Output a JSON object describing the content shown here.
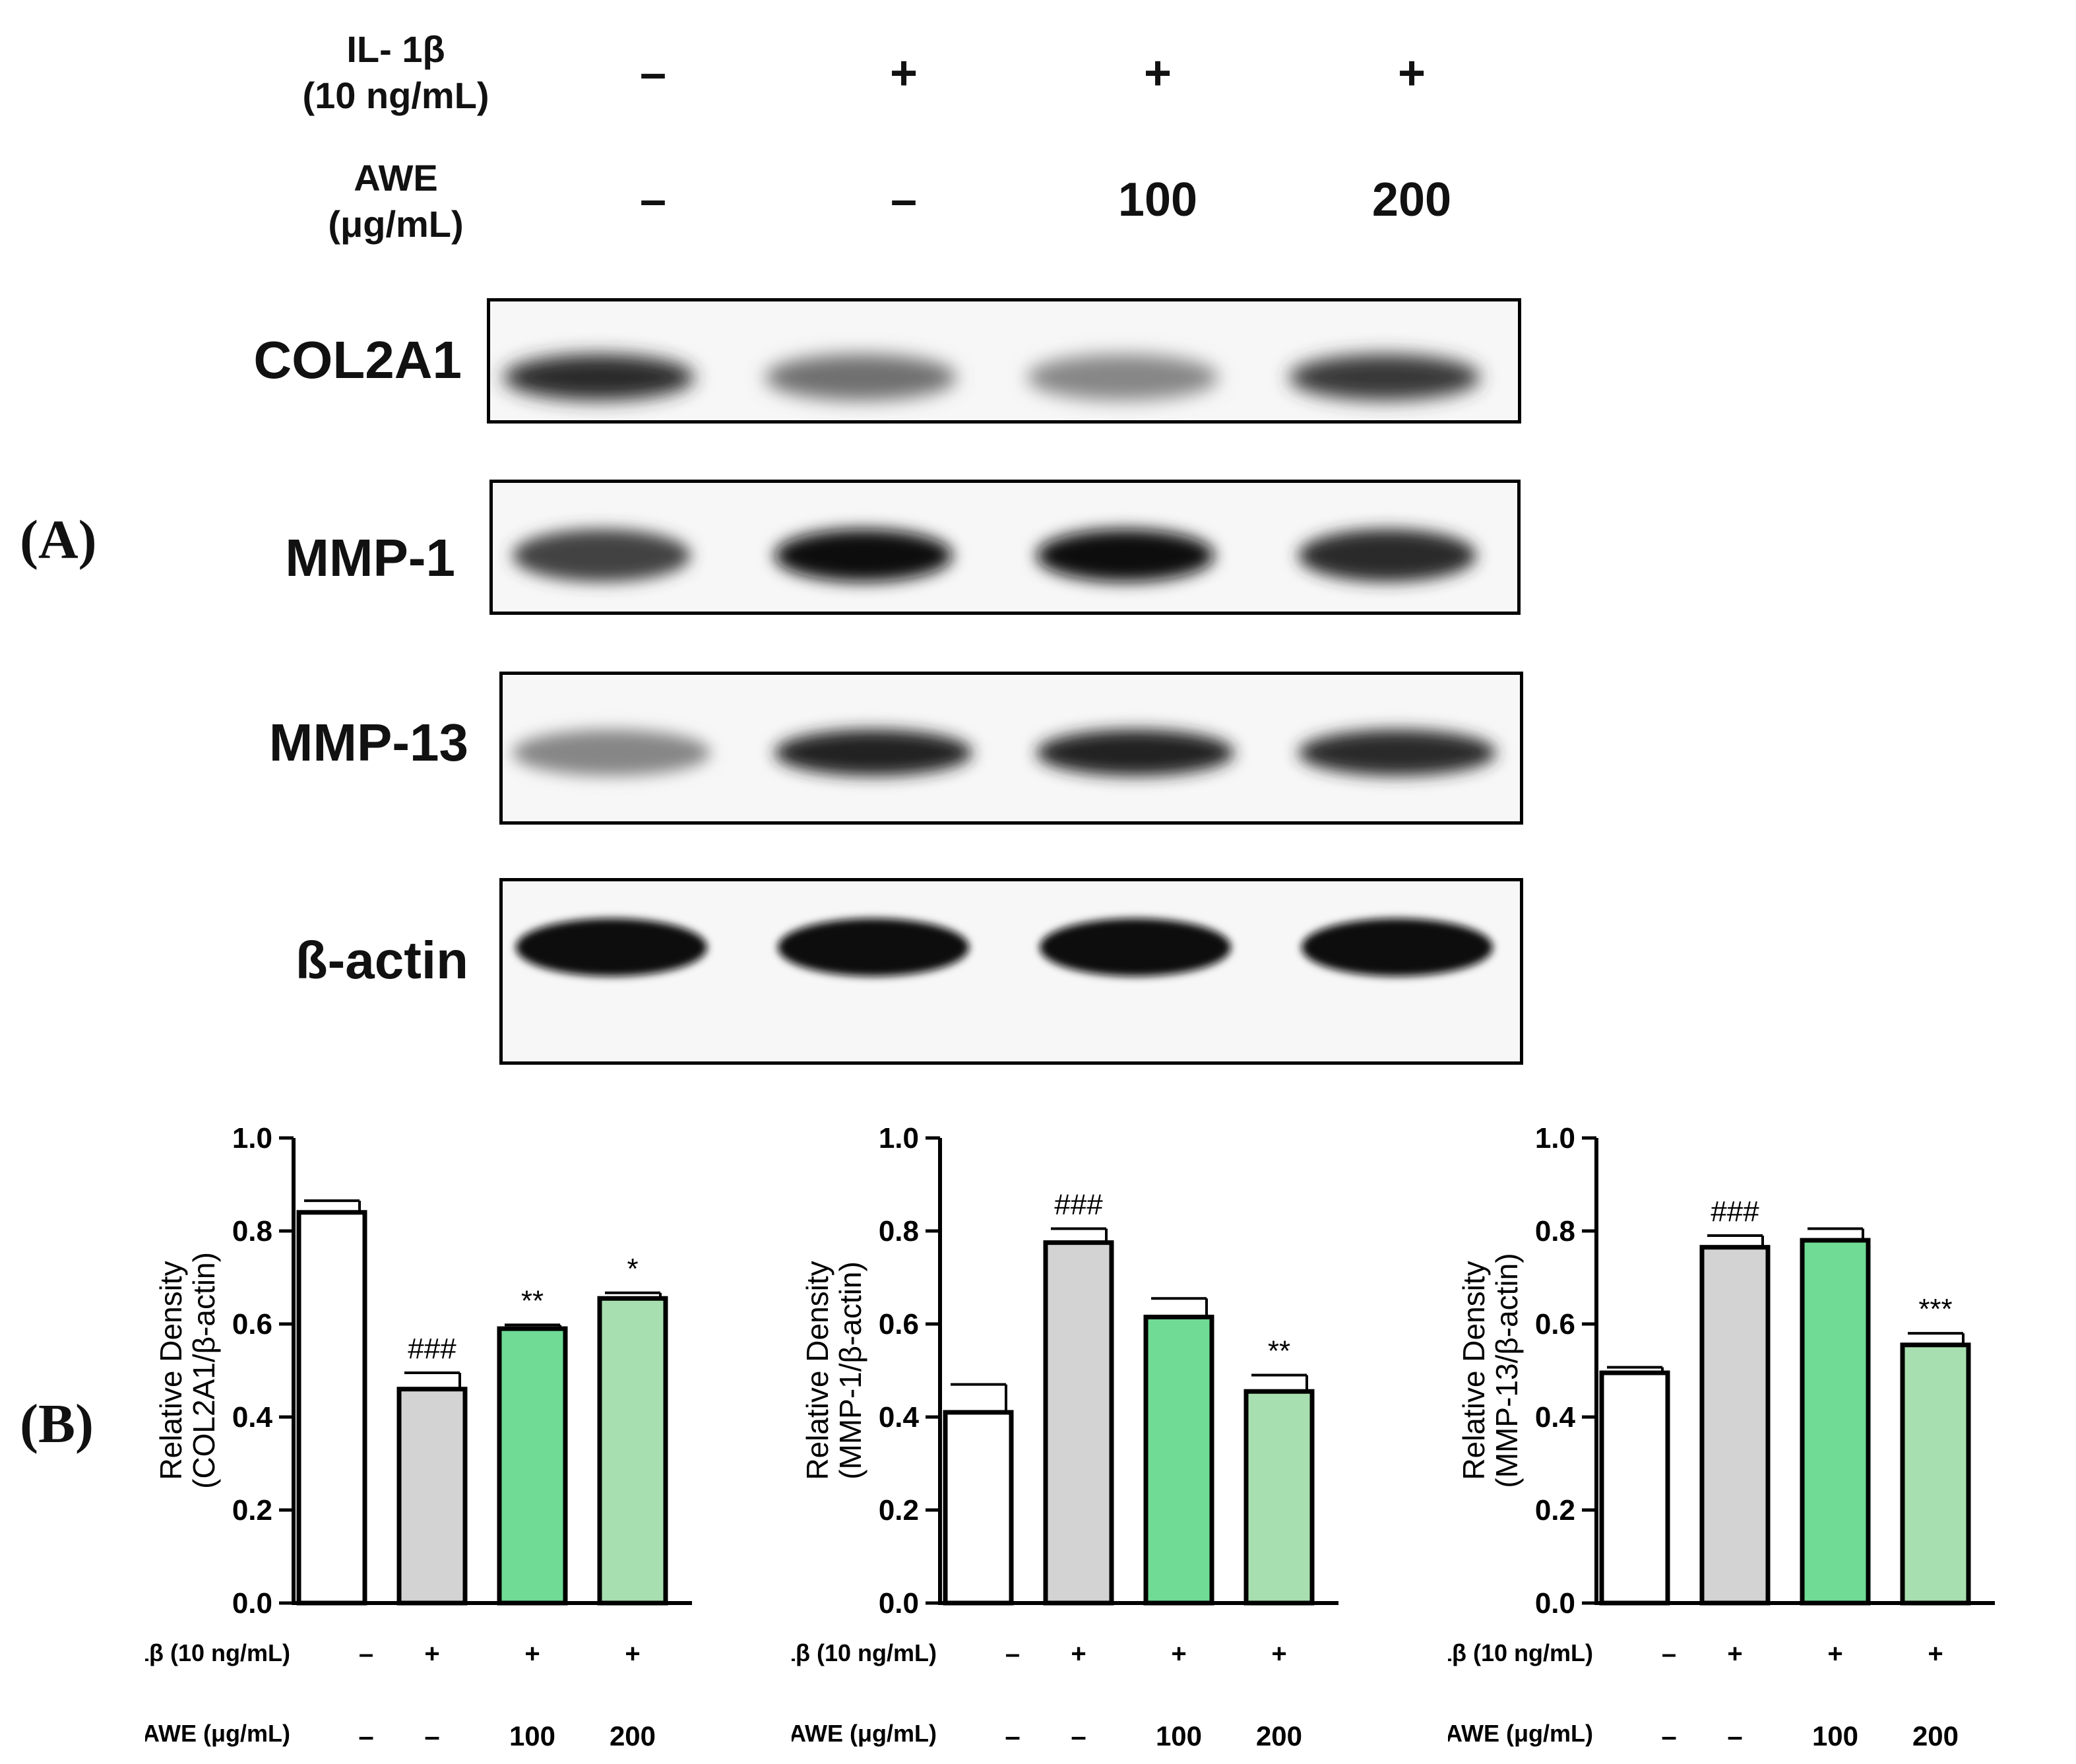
{
  "panels": {
    "a": "(A)",
    "b": "(B)"
  },
  "blot": {
    "header": {
      "il_label_line1": "IL- 1β",
      "il_label_line2": "(10 ng/mL)",
      "awe_label_line1": "AWE",
      "awe_label_line2": "(μg/mL)",
      "il_values": [
        "–",
        "+",
        "+",
        "+"
      ],
      "awe_values": [
        "–",
        "–",
        "100",
        "200"
      ]
    },
    "bands": [
      {
        "name": "COL2A1",
        "intensity": [
          0.85,
          0.55,
          0.45,
          0.8
        ]
      },
      {
        "name": "MMP-1",
        "intensity": [
          0.75,
          1.0,
          1.0,
          0.85
        ]
      },
      {
        "name": "MMP-13",
        "intensity": [
          0.45,
          0.9,
          0.9,
          0.85
        ]
      },
      {
        "name": "ß-actin",
        "intensity": [
          1.0,
          1.0,
          1.0,
          1.0
        ]
      }
    ]
  },
  "conditions": {
    "il_label": "IL-1β (10 ng/mL)",
    "awe_label": "AWE (μg/mL)",
    "il_values": [
      "–",
      "+",
      "+",
      "+"
    ],
    "awe_values": [
      "–",
      "–",
      "100",
      "200"
    ]
  },
  "colors": {
    "bars": [
      "#ffffff",
      "#d3d3d3",
      "#6fdb94",
      "#a8dfb0"
    ],
    "outline": "#000000"
  },
  "chart_data": [
    {
      "type": "bar",
      "ylabel_line1": "Relative Density",
      "ylabel_line2": "(COL2A1/β-actin)",
      "ylim": [
        0,
        1.0
      ],
      "yticks": [
        "0.0",
        "0.2",
        "0.4",
        "0.6",
        "0.8",
        "1.0"
      ],
      "values": [
        0.84,
        0.46,
        0.59,
        0.655
      ],
      "errors": [
        0.025,
        0.035,
        0.008,
        0.012
      ],
      "annotations": [
        "",
        "###",
        "**",
        "*"
      ]
    },
    {
      "type": "bar",
      "ylabel_line1": "Relative Density",
      "ylabel_line2": "(MMP-1/β-actin)",
      "ylim": [
        0,
        1.0
      ],
      "yticks": [
        "0.0",
        "0.2",
        "0.4",
        "0.6",
        "0.8",
        "1.0"
      ],
      "values": [
        0.41,
        0.775,
        0.615,
        0.455
      ],
      "errors": [
        0.06,
        0.03,
        0.04,
        0.035
      ],
      "annotations": [
        "",
        "###",
        "",
        "**"
      ]
    },
    {
      "type": "bar",
      "ylabel_line1": "Relative Density",
      "ylabel_line2": "(MMP-13/β-actin)",
      "ylim": [
        0,
        1.0
      ],
      "yticks": [
        "0.0",
        "0.2",
        "0.4",
        "0.6",
        "0.8",
        "1.0"
      ],
      "values": [
        0.495,
        0.765,
        0.78,
        0.555
      ],
      "errors": [
        0.012,
        0.025,
        0.025,
        0.025
      ],
      "annotations": [
        "",
        "###",
        "",
        "***"
      ]
    }
  ]
}
